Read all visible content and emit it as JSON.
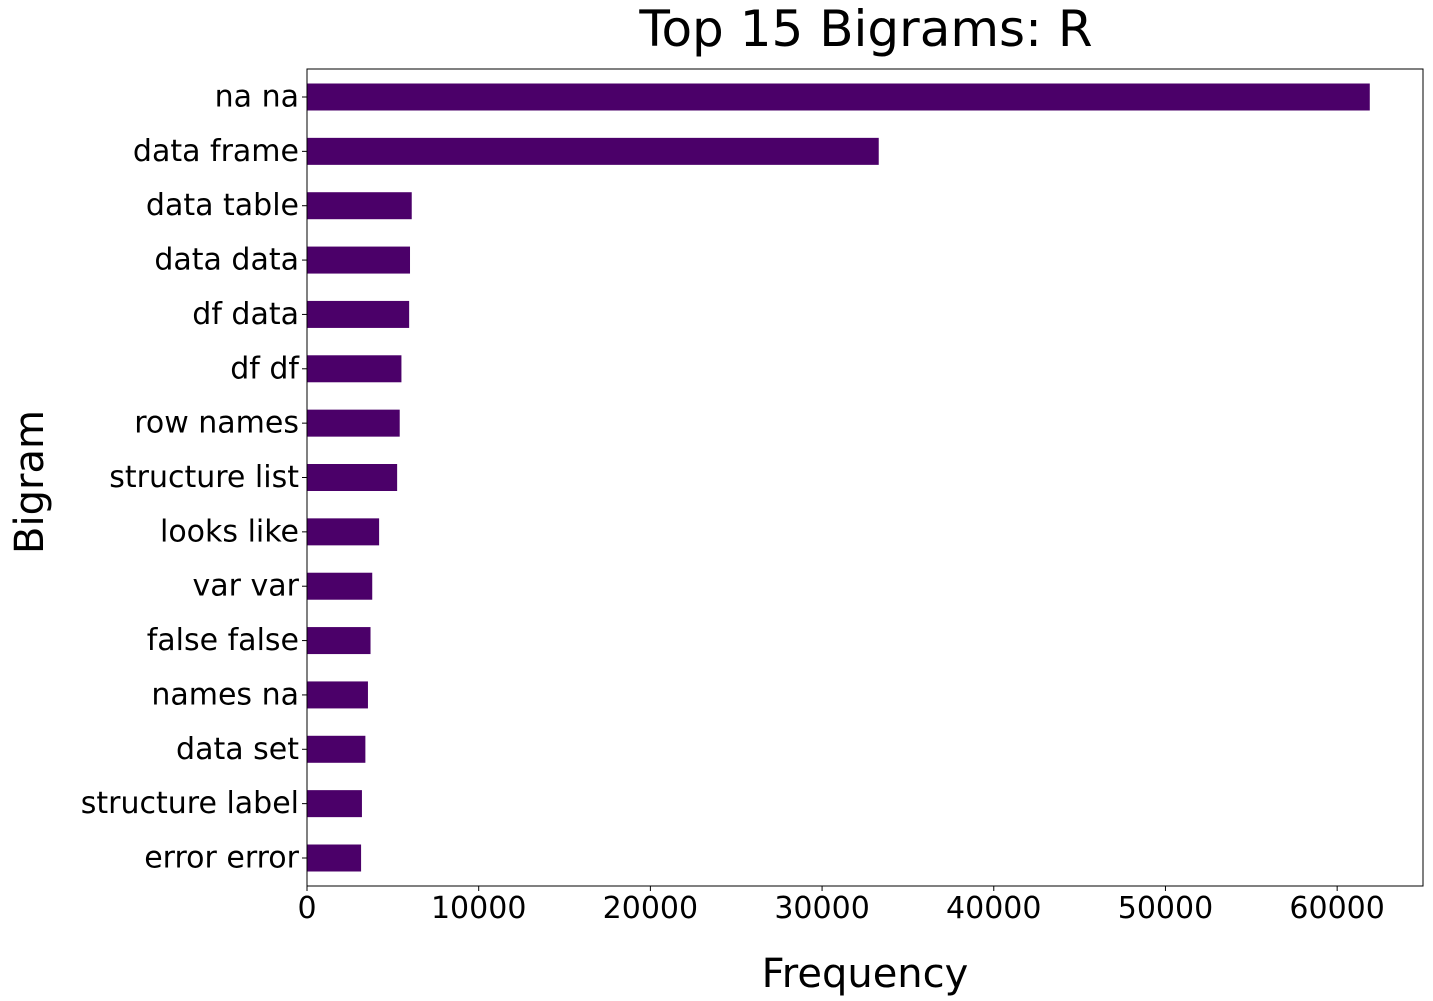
{
  "chart_data": {
    "type": "bar",
    "orientation": "horizontal",
    "title": "Top 15 Bigrams: R",
    "xlabel": "Frequency",
    "ylabel": "Bigram",
    "categories": [
      "na na",
      "data frame",
      "data table",
      "data data",
      "df data",
      "df df",
      "row names",
      "structure list",
      "looks like",
      "var var",
      "false false",
      "names na",
      "data set",
      "structure label",
      "error error"
    ],
    "values": [
      61900,
      33300,
      6100,
      6000,
      5950,
      5500,
      5400,
      5250,
      4200,
      3800,
      3700,
      3550,
      3400,
      3200,
      3150
    ],
    "xlim": [
      0,
      65000
    ],
    "xticks": [
      0,
      10000,
      20000,
      30000,
      40000,
      50000,
      60000
    ],
    "xtick_labels": [
      "0",
      "10000",
      "20000",
      "30000",
      "40000",
      "50000",
      "60000"
    ],
    "bar_color": "#4b0069",
    "grid": false,
    "legend": "none"
  }
}
